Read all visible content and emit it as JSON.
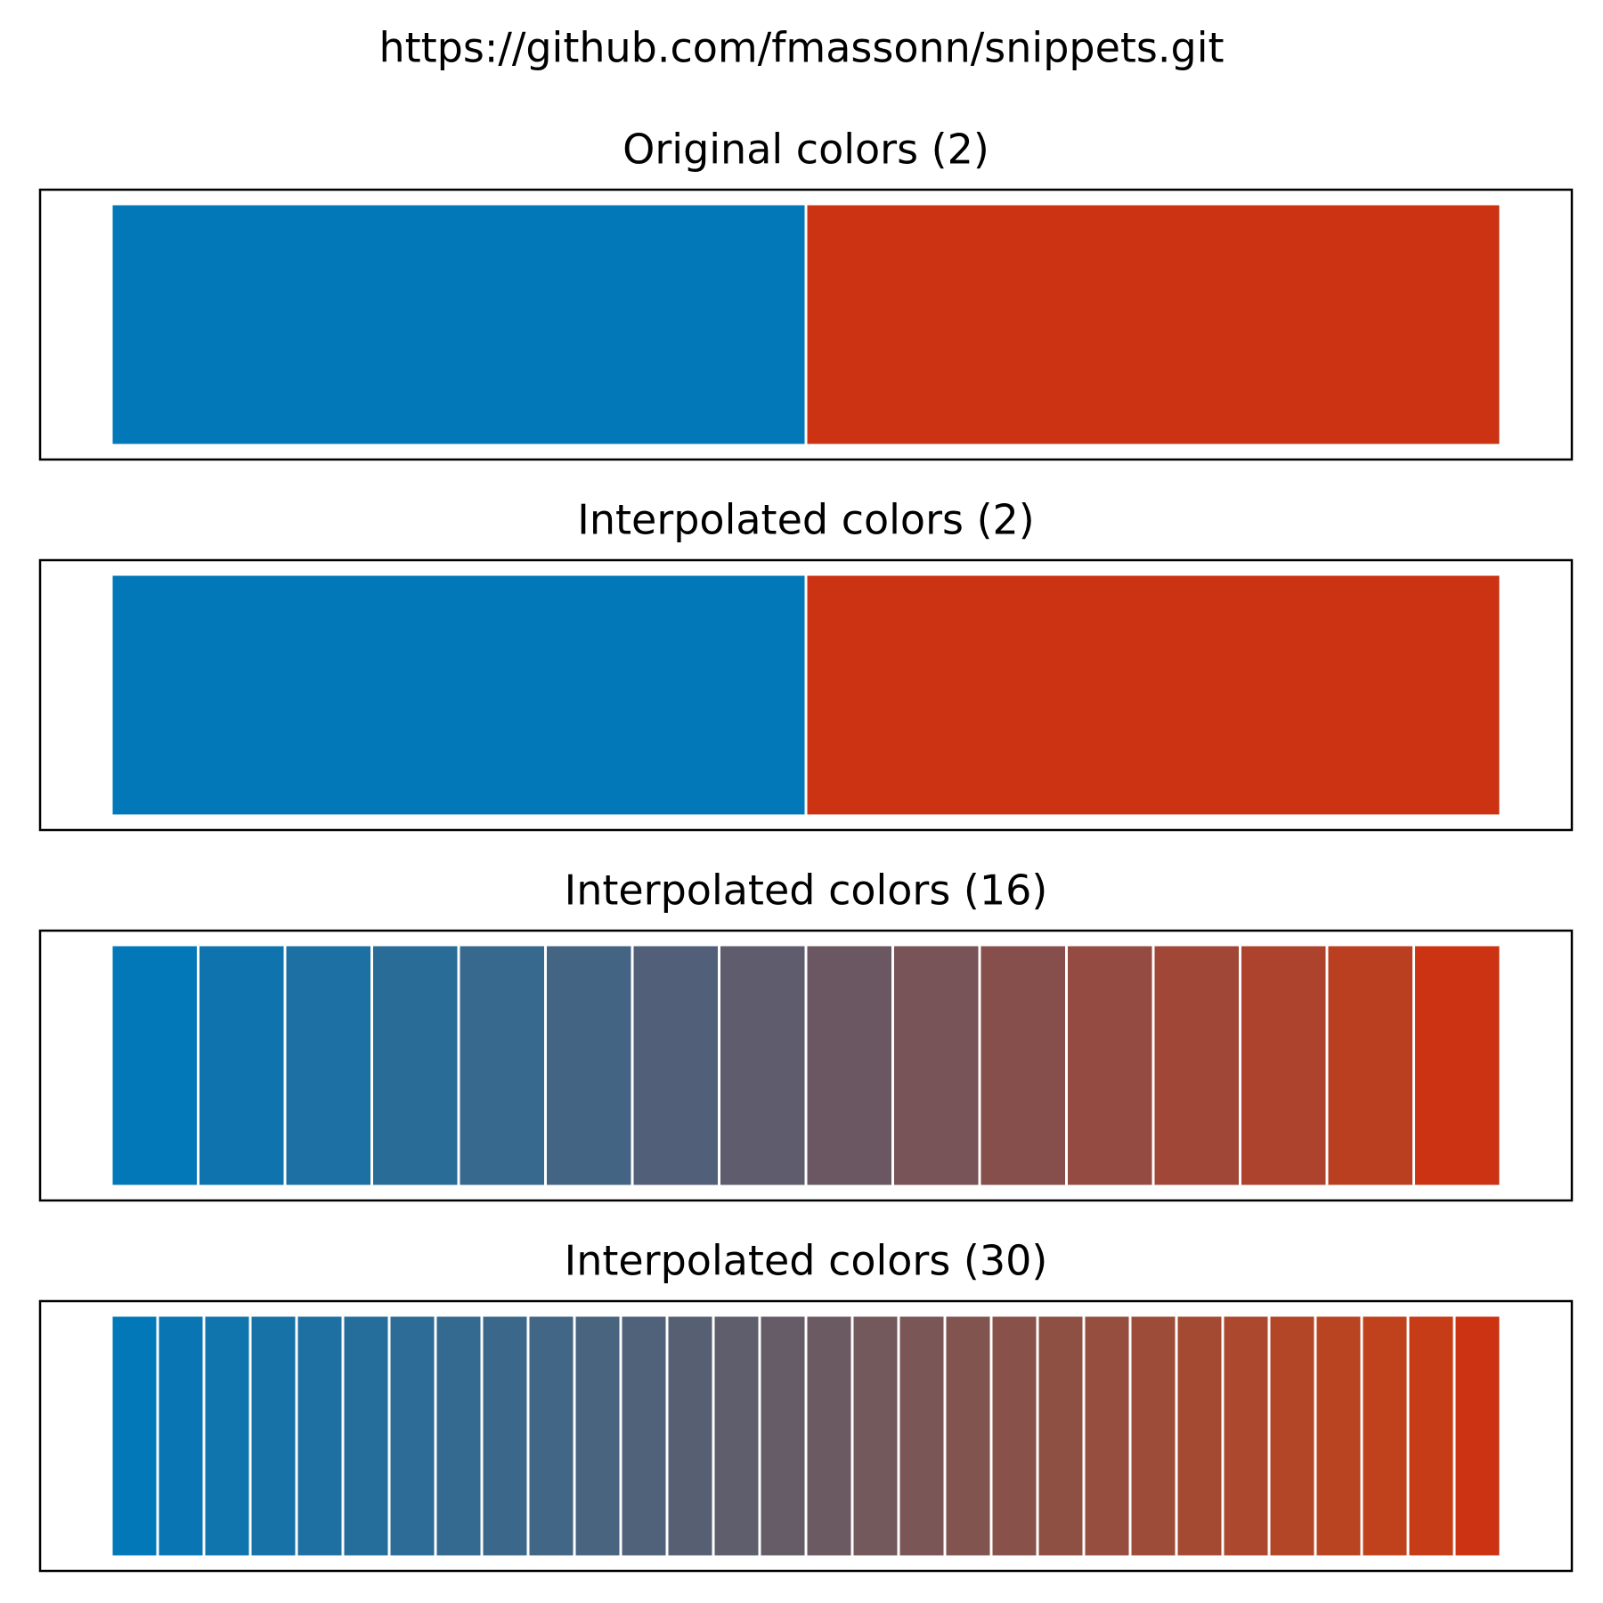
{
  "figure": {
    "suptitle": "https://github.com/fmassonn/snippets.git"
  },
  "chart_data": [
    {
      "type": "bar",
      "title": "Original colors (2)",
      "n": 2,
      "colors": [
        "#0278b9",
        "#cb3313"
      ]
    },
    {
      "type": "bar",
      "title": "Interpolated colors (2)",
      "n": 2,
      "colors": [
        "#0278b9",
        "#cb3313"
      ]
    },
    {
      "type": "bar",
      "title": "Interpolated colors (16)",
      "n": 16,
      "colors": [
        "#0278b9",
        "#0f74ae",
        "#1c70a3",
        "#296c98",
        "#37688e",
        "#446483",
        "#516078",
        "#5e5c6d",
        "#6b5762",
        "#785357",
        "#864f4c",
        "#934b42",
        "#a04737",
        "#ad432c",
        "#ba3f21",
        "#cb3313"
      ]
    },
    {
      "type": "bar",
      "title": "Interpolated colors (30)",
      "n": 30,
      "colors": [
        "#0278b9",
        "#0976b3",
        "#1074ad",
        "#1772a8",
        "#1e70a2",
        "#256e9c",
        "#2d6c96",
        "#346a90",
        "#3b688a",
        "#426685",
        "#49647f",
        "#506279",
        "#576073",
        "#5e5e6d",
        "#655c67",
        "#6c5a62",
        "#73585c",
        "#7a5656",
        "#815450",
        "#88524a",
        "#8f5044",
        "#964e3f",
        "#9d4c39",
        "#a44a33",
        "#ab482d",
        "#b24627",
        "#b94421",
        "#c0421c",
        "#c63c17",
        "#cb3313"
      ]
    }
  ]
}
